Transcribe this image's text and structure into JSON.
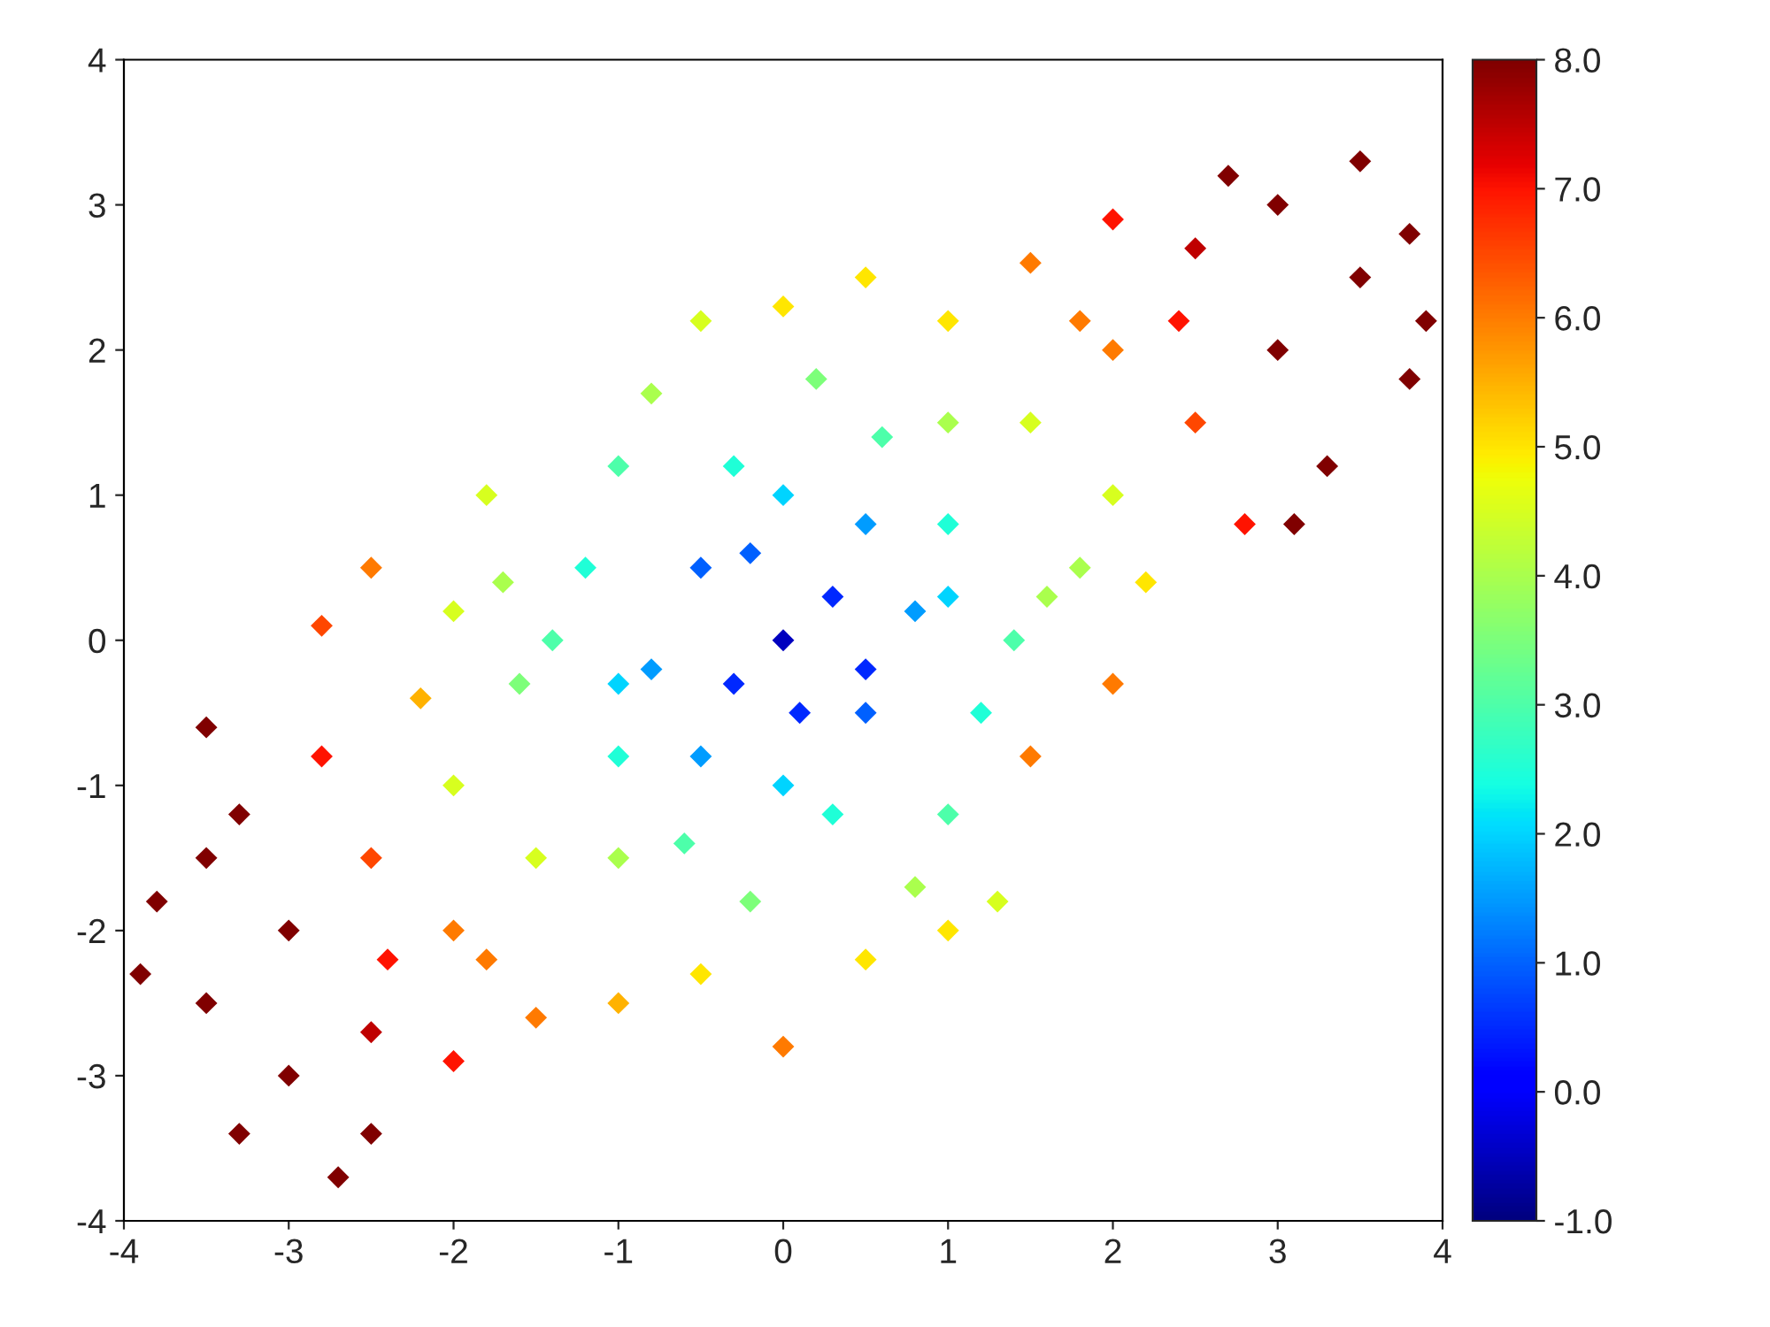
{
  "chart_data": {
    "type": "scatter",
    "marker": "diamond",
    "grid": false,
    "legend": false,
    "xlim": [
      -4,
      4
    ],
    "xticks": [
      -4,
      -3,
      -2,
      -1,
      0,
      1,
      2,
      3,
      4
    ],
    "ylim": [
      -4,
      4
    ],
    "yticks": [
      -4,
      -3,
      -2,
      -1,
      0,
      1,
      2,
      3,
      4
    ],
    "clim": [
      -1,
      8
    ],
    "cticks": [
      {
        "value": -1,
        "label": "-1.0"
      },
      {
        "value": 0,
        "label": "0.0"
      },
      {
        "value": 1,
        "label": "1.0"
      },
      {
        "value": 2,
        "label": "2.0"
      },
      {
        "value": 3,
        "label": "3.0"
      },
      {
        "value": 4,
        "label": "4.0"
      },
      {
        "value": 5,
        "label": "5.0"
      },
      {
        "value": 6,
        "label": "6.0"
      },
      {
        "value": 7,
        "label": "7.0"
      },
      {
        "value": 8,
        "label": "8.0"
      }
    ],
    "x": [
      0,
      0.3,
      -0.3,
      0.5,
      -0.5,
      0.8,
      -0.8,
      0,
      0,
      1,
      -1,
      1.2,
      -1.2,
      0.6,
      -0.6,
      -1,
      1,
      1.4,
      -1.4,
      0.2,
      -0.2,
      -0.8,
      0.8,
      -0.5,
      0,
      1,
      0.5,
      -0.5,
      1.5,
      2,
      1.8,
      1.5,
      2,
      2.5,
      2.5,
      3,
      3,
      3.5,
      3.8,
      3.3,
      2.8,
      3.5,
      2.2,
      1.6,
      2,
      1.5,
      1.8,
      2.4,
      1,
      0.5,
      -2,
      -2.5,
      -2.5,
      -3,
      -3,
      -3.5,
      -3.8,
      -3.3,
      -3.5,
      -2.8,
      -2.7,
      -2.2,
      -2,
      -1.7,
      -2.8,
      -1.6,
      -2,
      -1.5,
      -1.8,
      -2.4,
      -1,
      -1.5,
      -2,
      -1,
      0,
      1,
      1.3,
      -1.8,
      -2.5,
      2,
      0.5,
      -0.3,
      0.3,
      -0.5,
      0.5,
      1,
      -1,
      0.1,
      -0.2,
      3.8,
      3.9,
      3.1,
      -3.9,
      -3.3,
      -3.5,
      2.7,
      -2.5
    ],
    "values": [
      0,
      0.3,
      -0.3,
      -0.5,
      0.5,
      0.2,
      -0.2,
      1,
      -1,
      0.8,
      -0.8,
      -0.5,
      0.5,
      1.4,
      -1.4,
      1.2,
      -1.2,
      0,
      0,
      1.8,
      -1.8,
      1.7,
      -1.7,
      2.2,
      2.3,
      2.2,
      -2.2,
      -2.3,
      1.5,
      1,
      0.5,
      -0.8,
      2,
      1.5,
      2.7,
      3,
      2,
      2.5,
      1.8,
      1.2,
      0.8,
      3.3,
      0.4,
      0.3,
      2.9,
      2.6,
      2.2,
      2.2,
      1.5,
      0.8,
      -2,
      -1.5,
      -2.7,
      -3,
      -2,
      -2.5,
      -1.8,
      -1.2,
      -0.6,
      -0.8,
      -3.7,
      -0.4,
      0.2,
      0.4,
      0.1,
      -0.3,
      -2.9,
      -2.6,
      -2.2,
      -2.2,
      -1.5,
      -1.5,
      -1,
      -2.5,
      -2.8,
      -2,
      -1.8,
      1,
      0.5,
      -0.3,
      2.5,
      1.2,
      -1.2,
      -0.8,
      -0.2,
      0.3,
      -0.3,
      -0.5,
      0.6,
      2.8,
      2.2,
      0.8,
      -2.3,
      -3.4,
      -1.5,
      3.2,
      -3.4
    ],
    "cvalues": [
      -0.5,
      0.5,
      0.5,
      1,
      1,
      1.5,
      1.5,
      2,
      2,
      2.5,
      2.5,
      2.5,
      2.5,
      3,
      3,
      3,
      3,
      3,
      3,
      3.5,
      3.5,
      4,
      4,
      4.5,
      5,
      5,
      5,
      5,
      4.5,
      4.5,
      4,
      6,
      6,
      6.5,
      7.5,
      8,
      8,
      8,
      8,
      8,
      7,
      8,
      5,
      4,
      7,
      6,
      6,
      7,
      4,
      1.5,
      6,
      6.5,
      7.5,
      8,
      8,
      8,
      8,
      8,
      8,
      7,
      8,
      5.5,
      4.5,
      4,
      6.5,
      3.5,
      7,
      6,
      6,
      7,
      4,
      4.5,
      4.5,
      5.5,
      6,
      5,
      4.5,
      4.5,
      6,
      6,
      5,
      2.5,
      2.5,
      1.5,
      0.5,
      2,
      2,
      0.5,
      1,
      8,
      8,
      8,
      8,
      8,
      8,
      8,
      8
    ]
  }
}
